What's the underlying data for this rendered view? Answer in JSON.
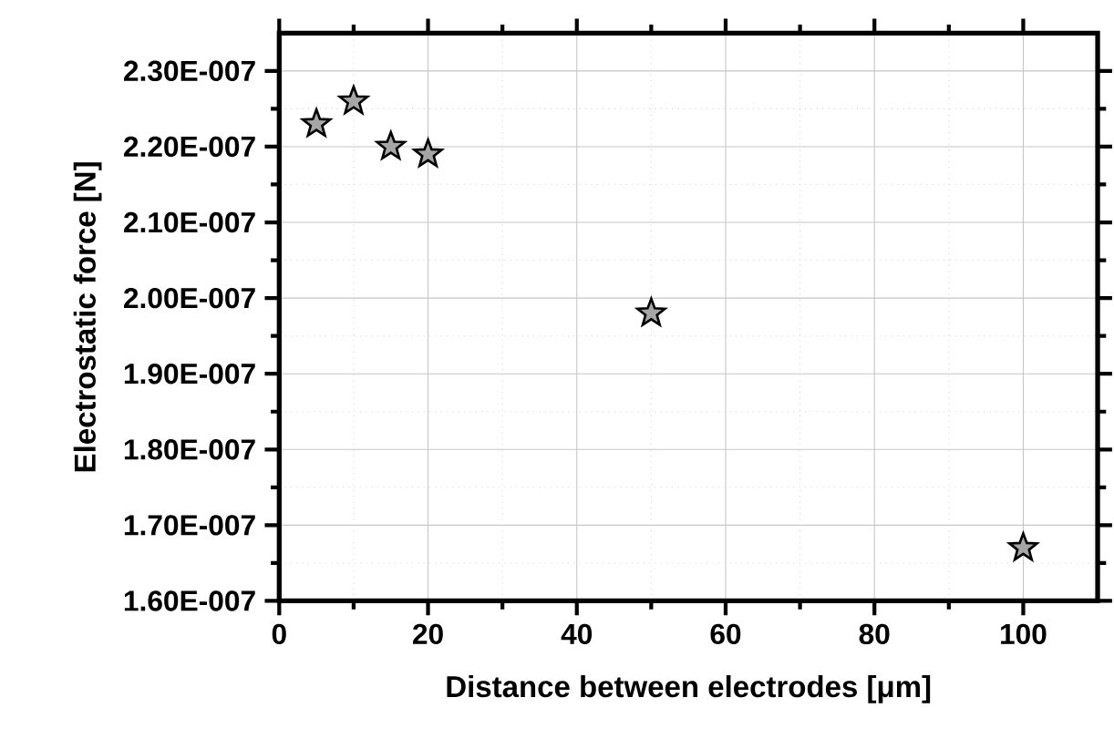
{
  "chart_data": {
    "type": "scatter",
    "xlabel": "Distance between electrodes [μm]",
    "ylabel": "Electrostatic force [N]",
    "x": [
      5,
      10,
      15,
      20,
      50,
      100
    ],
    "values": [
      2.23e-07,
      2.26e-07,
      2.2e-07,
      2.19e-07,
      1.98e-07,
      1.67e-07
    ],
    "color": "#000000",
    "marker": "star",
    "grid": true,
    "xlim": [
      0,
      110
    ],
    "xticks": [
      0,
      20,
      40,
      60,
      80,
      100
    ],
    "ylim": [
      1.6e-07,
      2.35e-07
    ],
    "yticks": [
      {
        "value": 1.6e-07,
        "label": "1.60E-007"
      },
      {
        "value": 1.7e-07,
        "label": "1.70E-007"
      },
      {
        "value": 1.8e-07,
        "label": "1.80E-007"
      },
      {
        "value": 1.9e-07,
        "label": "1.90E-007"
      },
      {
        "value": 2e-07,
        "label": "2.00E-007"
      },
      {
        "value": 2.1e-07,
        "label": "2.10E-007"
      },
      {
        "value": 2.2e-07,
        "label": "2.20E-007"
      },
      {
        "value": 2.3e-07,
        "label": "2.30E-007"
      }
    ]
  }
}
